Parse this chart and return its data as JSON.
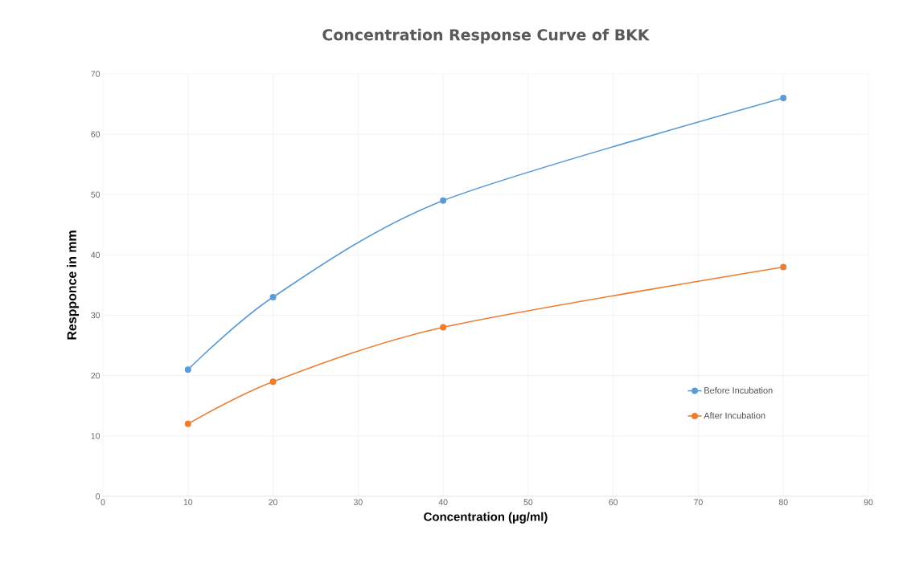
{
  "chart_data": {
    "type": "line",
    "title": "Concentration Response Curve of BKK",
    "xlabel": "Concentration (µg/ml)",
    "ylabel": "Respponce in mm",
    "x": [
      10,
      20,
      40,
      80
    ],
    "series": [
      {
        "name": "Before Incubation",
        "color": "#5b9bd5",
        "values": [
          21,
          33,
          49,
          66
        ]
      },
      {
        "name": "After Incubation",
        "color": "#ed7d31",
        "values": [
          12,
          19,
          28,
          38
        ]
      }
    ],
    "xlim": [
      0,
      90
    ],
    "xticks": [
      0,
      10,
      20,
      30,
      40,
      50,
      60,
      70,
      80,
      90
    ],
    "ylim": [
      0,
      70
    ],
    "yticks": [
      0,
      10,
      20,
      30,
      40,
      50,
      60,
      70
    ],
    "grid": true,
    "legend": "right",
    "marker": "circle",
    "line_style": "solid"
  }
}
